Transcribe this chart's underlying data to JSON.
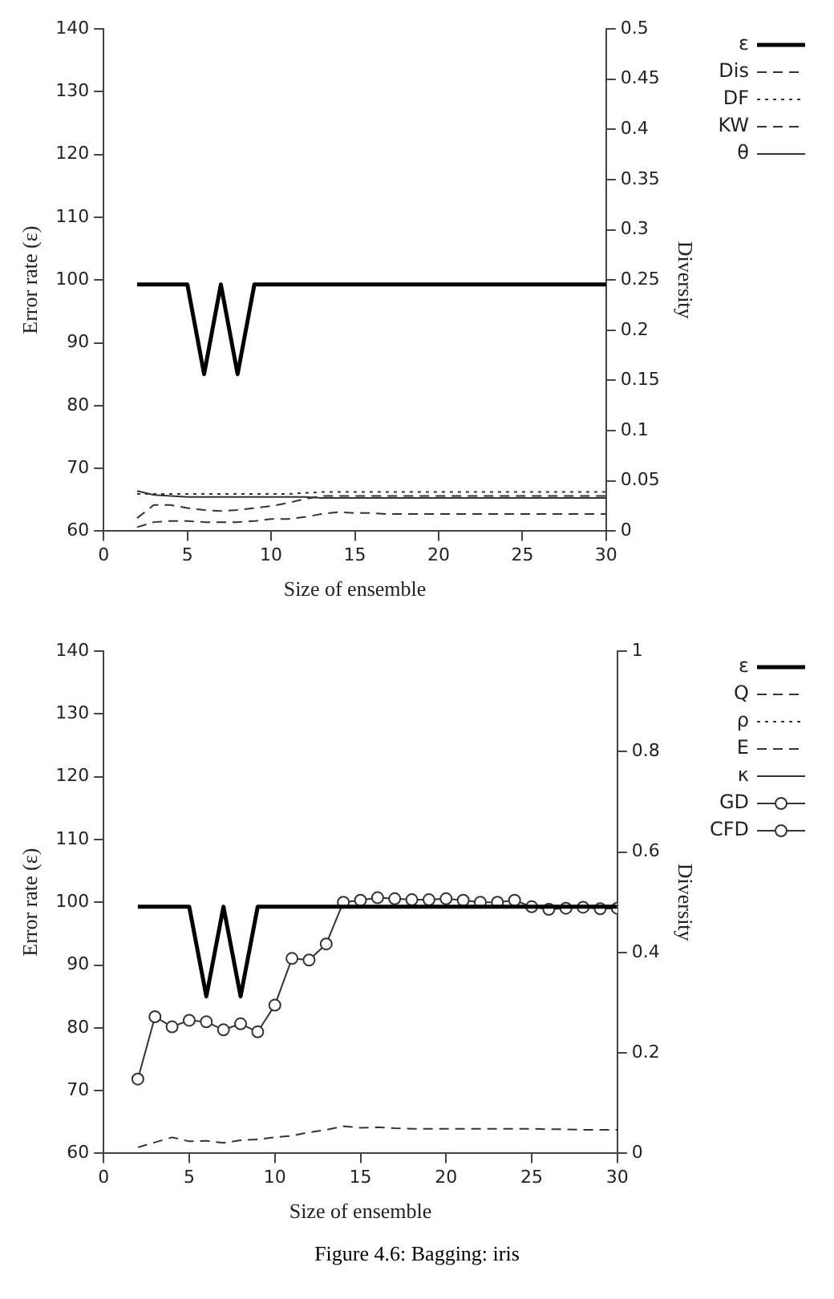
{
  "chart_data": [
    {
      "type": "line",
      "xlabel": "Size of ensemble",
      "ylabel": "Error rate (ε)",
      "y2label": "Diversity",
      "x": [
        2,
        3,
        4,
        5,
        6,
        7,
        8,
        9,
        10,
        11,
        12,
        13,
        14,
        15,
        16,
        17,
        18,
        19,
        20,
        21,
        22,
        23,
        24,
        25,
        26,
        27,
        28,
        29,
        30
      ],
      "xlim": [
        0,
        30
      ],
      "xticks": [
        0,
        5,
        10,
        15,
        20,
        25,
        30
      ],
      "ylim": [
        60,
        140
      ],
      "yticks": [
        60,
        70,
        80,
        90,
        100,
        110,
        120,
        130,
        140
      ],
      "y2lim": [
        0,
        0.5
      ],
      "y2ticks": [
        0,
        0.05,
        0.1,
        0.15,
        0.2,
        0.25,
        0.3,
        0.35,
        0.4,
        0.45,
        0.5
      ],
      "grid": false,
      "legend": "top right",
      "series": [
        {
          "name": "ε",
          "type": "line",
          "axis": "y",
          "color": "#000000",
          "line_style": "solid",
          "marker": "none",
          "values": [
            99.3,
            99.3,
            99.3,
            99.3,
            85,
            99.3,
            85,
            99.3,
            99.3,
            99.3,
            99.3,
            99.3,
            99.3,
            99.3,
            99.3,
            99.3,
            99.3,
            99.3,
            99.3,
            99.3,
            99.3,
            99.3,
            99.3,
            99.3,
            99.3,
            99.3,
            99.3,
            99.3,
            99.3
          ]
        },
        {
          "name": "Dis",
          "type": "line",
          "axis": "y2",
          "color": "#333333",
          "line_style": "dashed",
          "marker": "none",
          "values": [
            0.013,
            0.026,
            0.026,
            0.023,
            0.021,
            0.02,
            0.021,
            0.023,
            0.025,
            0.028,
            0.032,
            0.035,
            0.035,
            0.035,
            0.035,
            0.035,
            0.035,
            0.035,
            0.035,
            0.035,
            0.035,
            0.035,
            0.035,
            0.035,
            0.035,
            0.035,
            0.035,
            0.035,
            0.035
          ]
        },
        {
          "name": "DF",
          "type": "line",
          "axis": "y2",
          "color": "#333333",
          "line_style": "dotted",
          "marker": "none",
          "values": [
            0.037,
            0.037,
            0.037,
            0.037,
            0.037,
            0.037,
            0.037,
            0.037,
            0.037,
            0.037,
            0.038,
            0.039,
            0.039,
            0.039,
            0.039,
            0.039,
            0.039,
            0.039,
            0.039,
            0.039,
            0.039,
            0.039,
            0.039,
            0.039,
            0.039,
            0.039,
            0.039,
            0.039,
            0.039
          ]
        },
        {
          "name": "KW",
          "type": "line",
          "axis": "y2",
          "color": "#333333",
          "line_style": "dashed",
          "marker": "none",
          "values": [
            0.004,
            0.009,
            0.01,
            0.01,
            0.009,
            0.009,
            0.009,
            0.01,
            0.012,
            0.012,
            0.014,
            0.017,
            0.019,
            0.018,
            0.018,
            0.017,
            0.017,
            0.017,
            0.017,
            0.017,
            0.017,
            0.017,
            0.017,
            0.017,
            0.017,
            0.017,
            0.017,
            0.017,
            0.017
          ]
        },
        {
          "name": "θ",
          "type": "line",
          "axis": "y2",
          "color": "#333333",
          "line_style": "solid",
          "marker": "none",
          "values": [
            0.04,
            0.036,
            0.035,
            0.034,
            0.034,
            0.034,
            0.034,
            0.034,
            0.034,
            0.034,
            0.034,
            0.033,
            0.033,
            0.033,
            0.033,
            0.033,
            0.033,
            0.033,
            0.033,
            0.033,
            0.033,
            0.033,
            0.033,
            0.033,
            0.033,
            0.033,
            0.033,
            0.033,
            0.033
          ]
        }
      ]
    },
    {
      "type": "line",
      "xlabel": "Size of ensemble",
      "ylabel": "Error rate (ε)",
      "y2label": "Diversity",
      "x": [
        2,
        3,
        4,
        5,
        6,
        7,
        8,
        9,
        10,
        11,
        12,
        13,
        14,
        15,
        16,
        17,
        18,
        19,
        20,
        21,
        22,
        23,
        24,
        25,
        26,
        27,
        28,
        29,
        30
      ],
      "xlim": [
        0,
        30
      ],
      "xticks": [
        0,
        5,
        10,
        15,
        20,
        25,
        30
      ],
      "ylim": [
        60,
        140
      ],
      "yticks": [
        60,
        70,
        80,
        90,
        100,
        110,
        120,
        130,
        140
      ],
      "y2lim": [
        0,
        1
      ],
      "y2ticks": [
        0,
        0.2,
        0.4,
        0.6,
        0.8,
        1
      ],
      "grid": false,
      "legend": "top right",
      "annotations": [
        "Figure 4.6: Bagging: iris"
      ],
      "series": [
        {
          "name": "ε",
          "type": "line",
          "axis": "y",
          "color": "#000000",
          "line_style": "solid",
          "marker": "none",
          "values": [
            99.3,
            99.3,
            99.3,
            99.3,
            85,
            99.3,
            85,
            99.3,
            99.3,
            99.3,
            99.3,
            99.3,
            99.3,
            99.3,
            99.3,
            99.3,
            99.3,
            99.3,
            99.3,
            99.3,
            99.3,
            99.3,
            99.3,
            99.3,
            99.3,
            99.3,
            99.3,
            99.3,
            99.3
          ]
        },
        {
          "name": "Q",
          "type": "line",
          "axis": "y2",
          "color": "#333333",
          "line_style": "dashed",
          "marker": "none",
          "values": [
            null,
            null,
            null,
            null,
            null,
            null,
            null,
            null,
            null,
            null,
            null,
            null,
            null,
            null,
            null,
            null,
            null,
            null,
            null,
            null,
            null,
            null,
            null,
            null,
            null,
            null,
            null,
            null,
            null
          ]
        },
        {
          "name": "ρ",
          "type": "line",
          "axis": "y2",
          "color": "#333333",
          "line_style": "dotted",
          "marker": "none",
          "values": [
            null,
            null,
            null,
            null,
            null,
            null,
            null,
            null,
            null,
            null,
            null,
            null,
            null,
            null,
            null,
            null,
            null,
            null,
            null,
            null,
            null,
            null,
            null,
            null,
            null,
            null,
            null,
            null,
            null
          ]
        },
        {
          "name": "E",
          "type": "line",
          "axis": "y2",
          "color": "#333333",
          "line_style": "dashed",
          "marker": "none",
          "values": [
            0.012,
            0.022,
            0.032,
            0.024,
            0.025,
            0.021,
            0.026,
            0.028,
            0.032,
            0.035,
            0.042,
            0.047,
            0.054,
            0.051,
            0.052,
            0.05,
            0.049,
            0.049,
            0.049,
            0.049,
            0.049,
            0.049,
            0.049,
            0.049,
            0.048,
            0.048,
            0.047,
            0.047,
            0.047
          ]
        },
        {
          "name": "κ",
          "type": "line",
          "axis": "y2",
          "color": "#333333",
          "line_style": "solid",
          "marker": "none",
          "values": [
            null,
            null,
            null,
            null,
            null,
            null,
            null,
            null,
            null,
            null,
            null,
            null,
            null,
            null,
            null,
            null,
            null,
            null,
            null,
            null,
            null,
            null,
            null,
            null,
            null,
            null,
            null,
            null,
            null
          ]
        },
        {
          "name": "GD",
          "type": "line",
          "axis": "y2",
          "color": "#333333",
          "line_style": "solid",
          "marker": "circle",
          "values": [
            null,
            null,
            null,
            null,
            null,
            null,
            null,
            null,
            null,
            null,
            null,
            null,
            null,
            null,
            null,
            null,
            null,
            null,
            null,
            null,
            null,
            null,
            null,
            null,
            null,
            null,
            null,
            null,
            null
          ]
        },
        {
          "name": "CFD",
          "type": "line",
          "axis": "y2",
          "color": "#333333",
          "line_style": "solid",
          "marker": "circle",
          "values": [
            0.148,
            0.272,
            0.252,
            0.265,
            0.262,
            0.246,
            0.258,
            0.242,
            0.295,
            0.388,
            0.385,
            0.417,
            0.5,
            0.504,
            0.509,
            0.507,
            0.505,
            0.505,
            0.507,
            0.504,
            0.5,
            0.5,
            0.504,
            0.491,
            0.486,
            0.488,
            0.49,
            0.487,
            0.488
          ]
        }
      ]
    }
  ]
}
